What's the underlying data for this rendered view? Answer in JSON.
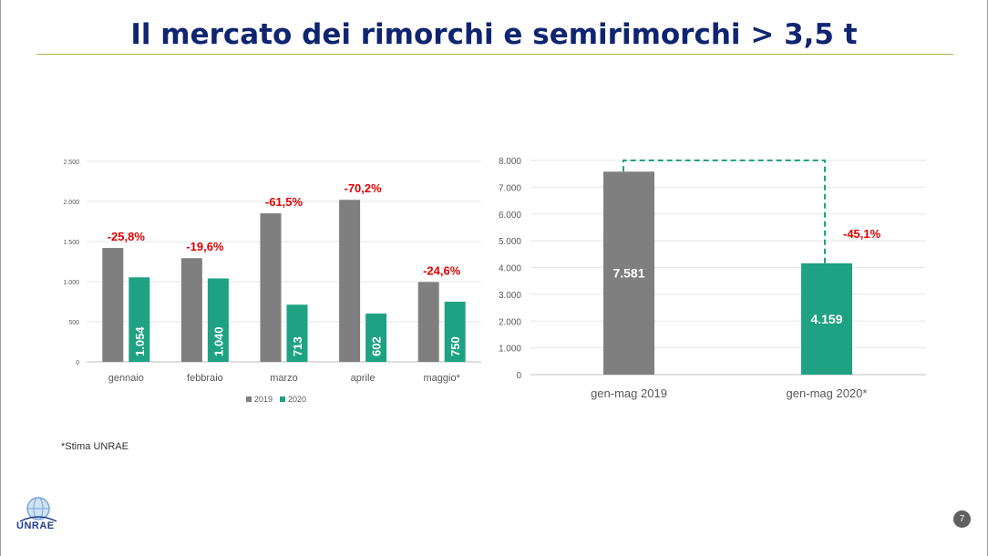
{
  "slide": {
    "title": "Il mercato dei rimorchi e semirimorchi > 3,5 t",
    "footnote": "*Stima UNRAE",
    "page_number": "7",
    "logo_text": "UNRAE"
  },
  "colors": {
    "series_2019": "#7f7f7f",
    "series_2020": "#1fa283",
    "change": "#e00000",
    "title": "#0f2570"
  },
  "chart_data": [
    {
      "type": "bar",
      "categories": [
        "gennaio",
        "febbraio",
        "marzo",
        "aprile",
        "maggio*"
      ],
      "series": [
        {
          "name": "2019",
          "values": [
            1420,
            1293,
            1852,
            2020,
            995
          ]
        },
        {
          "name": "2020",
          "values": [
            1054,
            1040,
            713,
            602,
            750
          ]
        }
      ],
      "value_labels_2020": [
        "1.054",
        "1.040",
        "713",
        "602",
        "750"
      ],
      "change_labels": [
        "-25,8%",
        "-19,6%",
        "-61,5%",
        "-70,2%",
        "-24,6%"
      ],
      "ylim": [
        0,
        2500
      ],
      "yticks": [
        0,
        500,
        1000,
        1500,
        2000,
        2500
      ],
      "ytick_labels": [
        "0",
        "500",
        "1.000",
        "1.500",
        "2.000",
        "2.500"
      ],
      "grid": true,
      "legend": "bottom"
    },
    {
      "type": "bar",
      "categories": [
        "gen-mag 2019",
        "gen-mag 2020*"
      ],
      "values": [
        7581,
        4159
      ],
      "value_labels": [
        "7.581",
        "4.159"
      ],
      "change_label": "-45,1%",
      "ylim": [
        0,
        8000
      ],
      "yticks": [
        0,
        1000,
        2000,
        3000,
        4000,
        5000,
        6000,
        7000,
        8000
      ],
      "ytick_labels": [
        "0",
        "1.000",
        "2.000",
        "3.000",
        "4.000",
        "5.000",
        "6.000",
        "7.000",
        "8.000"
      ],
      "grid": true
    }
  ]
}
